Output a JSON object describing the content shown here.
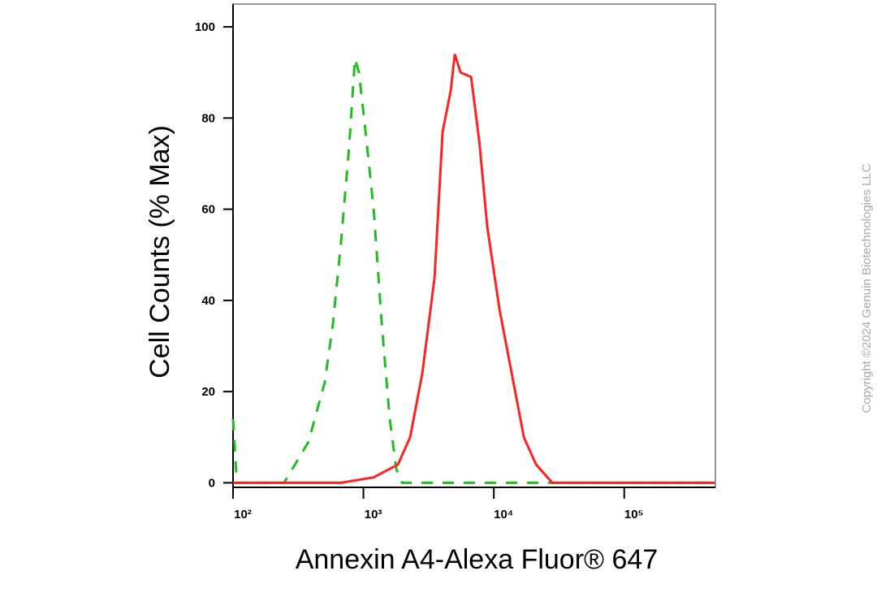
{
  "chart_data": {
    "type": "line",
    "x_label": "Annexin A4-Alexa Fluor® 647",
    "y_label": "Cell Counts (% Max)",
    "watermark": "Copyright ©2024 Genuin Biotechnologies LLC",
    "xscale": "log",
    "xlim": [
      100,
      500000
    ],
    "xticks": [
      {
        "value": 100,
        "label": "10²"
      },
      {
        "value": 1000,
        "label": "10³"
      },
      {
        "value": 10000,
        "label": "10⁴"
      },
      {
        "value": 100000,
        "label": "10⁵"
      }
    ],
    "ylim": [
      -1,
      105
    ],
    "yticks": [
      0,
      20,
      40,
      60,
      80,
      100
    ],
    "series": [
      {
        "color": "#22bb22",
        "dash": true,
        "x": [
          100,
          107,
          161,
          246,
          285,
          379,
          505,
          584,
          674,
          778,
          860,
          925,
          1038,
          1198,
          1382,
          1592,
          1787,
          1977,
          495000
        ],
        "values": [
          14,
          0,
          0,
          0,
          3,
          9,
          22,
          35,
          53,
          74,
          93,
          90,
          77,
          60,
          35,
          14,
          3,
          0,
          0
        ]
      },
      {
        "color": "#ff2222",
        "dash": false,
        "x": [
          100,
          674,
          1198,
          1841,
          2280,
          2830,
          3510,
          4050,
          4670,
          5020,
          5560,
          6700,
          7730,
          8920,
          11060,
          13710,
          17010,
          21090,
          28100,
          495000
        ],
        "values": [
          0,
          0,
          1.2,
          4,
          10,
          24,
          45,
          77,
          86,
          94,
          90,
          89,
          75,
          56,
          38,
          24,
          10,
          4,
          0,
          0
        ]
      }
    ]
  }
}
